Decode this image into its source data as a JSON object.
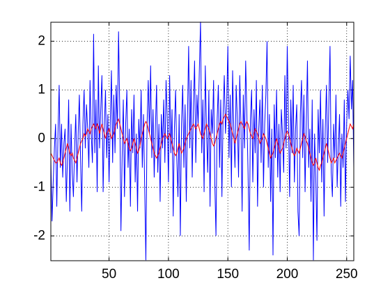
{
  "chart_data": {
    "type": "line",
    "x": [
      1,
      2,
      3,
      4,
      5,
      6,
      7,
      8,
      9,
      10,
      11,
      12,
      13,
      14,
      15,
      16,
      17,
      18,
      19,
      20,
      21,
      22,
      23,
      24,
      25,
      26,
      27,
      28,
      29,
      30,
      31,
      32,
      33,
      34,
      35,
      36,
      37,
      38,
      39,
      40,
      41,
      42,
      43,
      44,
      45,
      46,
      47,
      48,
      49,
      50,
      51,
      52,
      53,
      54,
      55,
      56,
      57,
      58,
      59,
      60,
      61,
      62,
      63,
      64,
      65,
      66,
      67,
      68,
      69,
      70,
      71,
      72,
      73,
      74,
      75,
      76,
      77,
      78,
      79,
      80,
      81,
      82,
      83,
      84,
      85,
      86,
      87,
      88,
      89,
      90,
      91,
      92,
      93,
      94,
      95,
      96,
      97,
      98,
      99,
      100,
      101,
      102,
      103,
      104,
      105,
      106,
      107,
      108,
      109,
      110,
      111,
      112,
      113,
      114,
      115,
      116,
      117,
      118,
      119,
      120,
      121,
      122,
      123,
      124,
      125,
      126,
      127,
      128,
      129,
      130,
      131,
      132,
      133,
      134,
      135,
      136,
      137,
      138,
      139,
      140,
      141,
      142,
      143,
      144,
      145,
      146,
      147,
      148,
      149,
      150,
      151,
      152,
      153,
      154,
      155,
      156,
      157,
      158,
      159,
      160,
      161,
      162,
      163,
      164,
      165,
      166,
      167,
      168,
      169,
      170,
      171,
      172,
      173,
      174,
      175,
      176,
      177,
      178,
      179,
      180,
      181,
      182,
      183,
      184,
      185,
      186,
      187,
      188,
      189,
      190,
      191,
      192,
      193,
      194,
      195,
      196,
      197,
      198,
      199,
      200,
      201,
      202,
      203,
      204,
      205,
      206,
      207,
      208,
      209,
      210,
      211,
      212,
      213,
      214,
      215,
      216,
      217,
      218,
      219,
      220,
      221,
      222,
      223,
      224,
      225,
      226,
      227,
      228,
      229,
      230,
      231,
      232,
      233,
      234,
      235,
      236,
      237,
      238,
      239,
      240,
      241,
      242,
      243,
      244,
      245,
      246,
      247,
      248,
      249,
      250,
      251,
      252,
      253,
      254,
      255,
      256
    ],
    "series": [
      {
        "color": "#0000ff",
        "values": [
          -0.4,
          -1.7,
          -0.9,
          -0.2,
          0.3,
          -1.4,
          0.1,
          1.1,
          -0.6,
          0.3,
          -0.8,
          -0.1,
          0.2,
          -1.3,
          -0.4,
          0.8,
          -1.5,
          0.3,
          -0.7,
          -1.2,
          -0.2,
          0.5,
          -0.9,
          0.1,
          0.9,
          -0.4,
          -1.5,
          0.3,
          1.0,
          -0.2,
          0.7,
          0.2,
          -0.6,
          1.2,
          0.1,
          -0.5,
          2.15,
          -0.3,
          0.8,
          -1.1,
          1.5,
          -0.2,
          0.6,
          1.3,
          -1.1,
          0.2,
          1.0,
          -0.4,
          0.5,
          -0.9,
          0.3,
          1.4,
          -0.5,
          0.9,
          -0.3,
          1.1,
          0.2,
          2.2,
          0.6,
          -1.9,
          -0.4,
          0.8,
          -1.2,
          0.3,
          1.0,
          -0.6,
          0.2,
          -1.4,
          0.6,
          -0.3,
          0.9,
          -0.9,
          0.1,
          -1.5,
          0.4,
          -0.2,
          1.0,
          -0.6,
          0.5,
          -1.0,
          -2.5,
          0.3,
          1.2,
          0.1,
          1.5,
          -0.4,
          0.6,
          -0.8,
          0.2,
          1.1,
          -0.7,
          0.3,
          -1.3,
          0.5,
          -0.2,
          0.8,
          -0.5,
          1.2,
          0.4,
          -0.9,
          1.3,
          -0.3,
          0.6,
          -1.6,
          0.2,
          1.0,
          -0.4,
          -1.2,
          0.5,
          -2.0,
          0.3,
          1.1,
          -0.6,
          0.7,
          -1.3,
          0.4,
          1.9,
          -0.2,
          1.2,
          -0.8,
          0.6,
          1.6,
          -0.5,
          0.9,
          0.3,
          1.4,
          2.4,
          -0.3,
          0.8,
          -1.1,
          1.5,
          0.2,
          -0.7,
          1.0,
          -1.4,
          0.6,
          0.1,
          1.2,
          -0.9,
          -2.0,
          0.4,
          1.1,
          -0.6,
          0.8,
          -1.2,
          0.5,
          1.3,
          0.1,
          0.7,
          1.9,
          -0.4,
          0.9,
          -1.0,
          1.4,
          0.2,
          -0.6,
          1.1,
          0.4,
          -0.8,
          1.3,
          0.3,
          -1.5,
          0.9,
          -0.2,
          1.6,
          0.5,
          -0.7,
          -2.3,
          0.4,
          1.0,
          -0.9,
          0.6,
          -0.3,
          1.2,
          -1.4,
          0.2,
          0.8,
          -0.5,
          1.1,
          -1.0,
          0.3,
          0.9,
          2.0,
          -0.6,
          0.5,
          -1.3,
          0.2,
          -2.4,
          0.7,
          -0.4,
          1.0,
          -0.8,
          0.3,
          -1.1,
          0.6,
          0.1,
          -0.7,
          1.3,
          -0.2,
          1.9,
          0.4,
          -1.2,
          0.8,
          -0.3,
          1.1,
          -0.9,
          0.2,
          0.7,
          -1.5,
          -2.0,
          0.5,
          1.2,
          -0.4,
          0.9,
          -1.1,
          0.3,
          1.6,
          -0.6,
          0.2,
          -1.3,
          0.8,
          -2.5,
          0.1,
          -0.8,
          -2.1,
          0.6,
          -0.3,
          1.0,
          -0.9,
          0.4,
          -1.6,
          0.2,
          1.1,
          -0.5,
          0.7,
          1.9,
          -0.7,
          -1.2,
          0.3,
          -0.4,
          0.9,
          -1.0,
          -0.2,
          0.5,
          -1.4,
          0.1,
          -0.6,
          0.8,
          -1.3,
          0.3,
          1.0,
          0.4,
          1.7,
          0.6,
          1.2,
          -0.6
        ]
      },
      {
        "color": "#ff0000",
        "values": [
          -0.3,
          -0.35,
          -0.4,
          -0.45,
          -0.5,
          -0.5,
          -0.45,
          -0.4,
          -0.5,
          -0.55,
          -0.5,
          -0.4,
          -0.3,
          -0.2,
          -0.1,
          -0.2,
          -0.3,
          -0.35,
          -0.3,
          -0.4,
          -0.45,
          -0.5,
          -0.4,
          -0.3,
          -0.2,
          -0.1,
          -0.05,
          0.0,
          0.1,
          0.05,
          0.1,
          0.2,
          0.15,
          0.1,
          0.2,
          0.25,
          0.3,
          0.25,
          0.2,
          0.3,
          0.25,
          0.1,
          0.2,
          0.3,
          0.2,
          0.1,
          0.0,
          0.1,
          0.15,
          0.2,
          0.1,
          0.0,
          0.05,
          0.1,
          0.2,
          0.3,
          0.35,
          0.4,
          0.3,
          0.2,
          0.1,
          0.0,
          -0.1,
          -0.05,
          0.0,
          -0.1,
          -0.2,
          -0.25,
          -0.2,
          -0.1,
          0.0,
          -0.1,
          -0.2,
          -0.3,
          -0.25,
          -0.15,
          0.0,
          0.1,
          0.2,
          0.3,
          0.35,
          0.3,
          0.2,
          0.1,
          0.0,
          -0.1,
          -0.2,
          -0.3,
          -0.35,
          -0.4,
          -0.35,
          -0.3,
          -0.2,
          -0.1,
          0.0,
          0.05,
          0.1,
          0.05,
          0.0,
          0.05,
          0.1,
          0.0,
          -0.1,
          -0.2,
          -0.3,
          -0.35,
          -0.3,
          -0.2,
          -0.1,
          -0.2,
          -0.3,
          -0.25,
          -0.2,
          -0.1,
          0.0,
          0.05,
          0.1,
          0.15,
          0.2,
          0.25,
          0.3,
          0.25,
          0.2,
          0.25,
          0.3,
          0.2,
          0.1,
          0.05,
          0.0,
          0.1,
          0.2,
          0.3,
          0.25,
          0.2,
          0.1,
          0.0,
          -0.1,
          -0.15,
          -0.1,
          0.0,
          0.1,
          0.2,
          0.3,
          0.35,
          0.3,
          0.4,
          0.45,
          0.5,
          0.45,
          0.4,
          0.35,
          0.3,
          0.2,
          0.1,
          0.0,
          -0.1,
          0.0,
          0.1,
          0.2,
          0.3,
          0.35,
          0.3,
          0.25,
          0.2,
          0.3,
          0.35,
          0.3,
          0.2,
          0.1,
          0.05,
          0.0,
          0.1,
          0.2,
          0.15,
          0.1,
          0.0,
          -0.1,
          -0.05,
          0.0,
          0.1,
          0.05,
          0.0,
          -0.1,
          -0.2,
          -0.3,
          -0.4,
          -0.35,
          -0.3,
          -0.2,
          -0.1,
          0.0,
          -0.1,
          -0.2,
          -0.3,
          -0.25,
          -0.2,
          -0.1,
          0.0,
          0.1,
          0.15,
          0.1,
          0.0,
          -0.1,
          -0.2,
          -0.3,
          -0.35,
          -0.3,
          -0.2,
          -0.25,
          -0.3,
          -0.2,
          -0.1,
          0.0,
          0.1,
          0.05,
          -0.05,
          -0.1,
          -0.2,
          -0.3,
          -0.4,
          -0.5,
          -0.55,
          -0.5,
          -0.4,
          -0.5,
          -0.6,
          -0.65,
          -0.55,
          -0.5,
          -0.4,
          -0.3,
          -0.2,
          -0.1,
          -0.2,
          -0.3,
          -0.4,
          -0.5,
          -0.45,
          -0.4,
          -0.5,
          -0.45,
          -0.4,
          -0.35,
          -0.3,
          -0.35,
          -0.4,
          -0.3,
          -0.2,
          -0.1,
          0.0,
          0.1,
          0.2,
          0.3,
          0.25,
          0.2,
          0.3
        ]
      }
    ],
    "xlim": [
      1,
      256
    ],
    "ylim": [
      -2.51,
      2.39
    ],
    "xticks": [
      50,
      100,
      150,
      200,
      250
    ],
    "yticks": [
      -2,
      -1,
      0,
      1,
      2
    ],
    "grid": true
  }
}
